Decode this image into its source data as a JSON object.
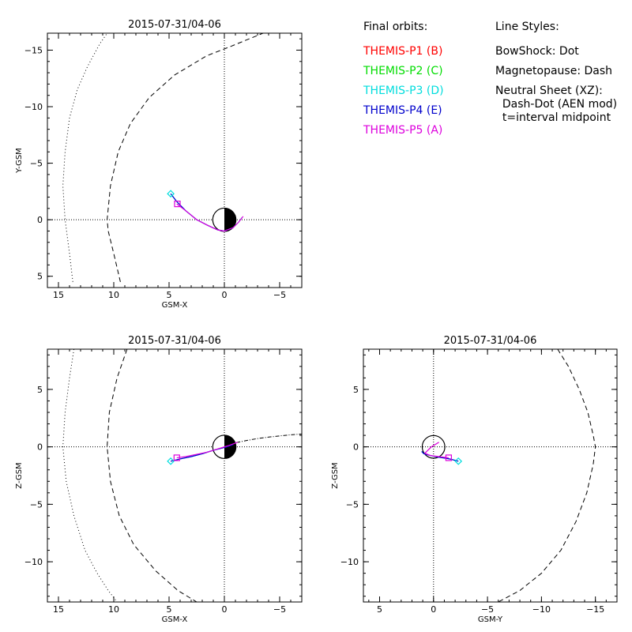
{
  "colors": {
    "P1": "#ff0000",
    "P2": "#00dd00",
    "P3": "#00dddd",
    "P4": "#0000cc",
    "P5": "#dd00dd",
    "axes": "#000000"
  },
  "legend": {
    "orbits_title": "Final orbits:",
    "probes": [
      {
        "label": "THEMIS-P1 (B)",
        "color_key": "P1"
      },
      {
        "label": "THEMIS-P2 (C)",
        "color_key": "P2"
      },
      {
        "label": "THEMIS-P3 (D)",
        "color_key": "P3"
      },
      {
        "label": "THEMIS-P4 (E)",
        "color_key": "P4"
      },
      {
        "label": "THEMIS-P5 (A)",
        "color_key": "P5"
      }
    ],
    "styles_title": "Line Styles:",
    "styles": [
      "BowShock: Dot",
      "Magnetopause: Dash",
      "Neutral Sheet (XZ):",
      "  Dash-Dot (AEN mod)",
      "  t=interval midpoint"
    ]
  },
  "chart_data": [
    {
      "type": "line",
      "title": "2015-07-31/04-06",
      "xlabel": "GSM-X",
      "ylabel": "Y-GSM",
      "xlim": [
        16,
        -7
      ],
      "ylim": [
        6,
        -16.5
      ],
      "xticks": [
        15,
        10,
        5,
        0,
        -5
      ],
      "yticks": [
        5,
        0,
        -5,
        -10,
        -15
      ],
      "earth": true,
      "bowshock": {
        "x": [
          13.7,
          14.0,
          14.4,
          14.6,
          14.4,
          14.0,
          13.3,
          12.4,
          11.3,
          10.6,
          9.0
        ],
        "y": [
          5.5,
          3.0,
          0.0,
          -3.0,
          -6.0,
          -9.0,
          -11.5,
          -13.5,
          -15.5,
          -16.5,
          -19.0
        ]
      },
      "magnetopause": {
        "x": [
          9.4,
          10.0,
          10.5,
          10.6,
          10.3,
          9.6,
          8.5,
          6.8,
          4.5,
          1.6,
          -0.5,
          -3.5
        ],
        "y": [
          5.5,
          3.0,
          1.0,
          0.0,
          -3.0,
          -6.0,
          -8.5,
          -10.8,
          -12.8,
          -14.5,
          -15.3,
          -16.5
        ]
      },
      "orbits": [
        {
          "name": "THEMIS-P3",
          "color_key": "P3",
          "x": [
            4.85,
            4.3,
            3.5,
            2.5,
            1.5,
            0.6,
            0.0,
            -0.8,
            -1.3,
            -1.6
          ],
          "y": [
            -2.3,
            -1.6,
            -0.8,
            0.0,
            0.5,
            0.9,
            1.0,
            0.7,
            0.2,
            -0.2
          ]
        },
        {
          "name": "THEMIS-P4",
          "color_key": "P4",
          "x": [
            4.85,
            4.3,
            3.5,
            2.5,
            1.5,
            0.6,
            0.0,
            -0.8
          ],
          "y": [
            -2.3,
            -1.6,
            -0.8,
            0.0,
            0.5,
            0.9,
            1.0,
            0.7
          ]
        },
        {
          "name": "THEMIS-P5",
          "color_key": "P5",
          "x": [
            4.3,
            3.5,
            2.5,
            1.5,
            0.6,
            0.0,
            -0.8,
            -1.3,
            -1.7
          ],
          "y": [
            -1.4,
            -0.8,
            0.0,
            0.5,
            0.9,
            1.0,
            0.7,
            0.2,
            -0.3
          ]
        }
      ],
      "markers": [
        {
          "shape": "diamond",
          "color_key": "P3",
          "x": 4.85,
          "y": -2.3
        },
        {
          "shape": "square",
          "color_key": "P5",
          "x": 4.25,
          "y": -1.4
        }
      ]
    },
    {
      "type": "line",
      "title": "2015-07-31/04-06",
      "xlabel": "GSM-X",
      "ylabel": "Z-GSM",
      "xlim": [
        16,
        -7
      ],
      "ylim": [
        -13.5,
        8.5
      ],
      "xticks": [
        15,
        10,
        5,
        0,
        -5
      ],
      "yticks": [
        5,
        0,
        -5,
        -10
      ],
      "earth": true,
      "bowshock": {
        "x": [
          13.6,
          14.0,
          14.4,
          14.6,
          14.3,
          13.6,
          12.6,
          11.5,
          10.5,
          9.7
        ],
        "y": [
          8.5,
          6.0,
          3.0,
          0.0,
          -3.0,
          -6.0,
          -9.0,
          -11.0,
          -12.5,
          -13.5
        ]
      },
      "magnetopause": {
        "x": [
          8.8,
          9.7,
          10.4,
          10.6,
          10.3,
          9.5,
          8.2,
          6.2,
          4.2,
          2.5
        ],
        "y": [
          8.5,
          6.0,
          3.0,
          0.0,
          -3.0,
          -6.0,
          -8.5,
          -10.8,
          -12.5,
          -13.5
        ]
      },
      "neutral_sheet": {
        "x": [
          1.0,
          0.0,
          -1.0,
          -2.0,
          -3.0,
          -4.0,
          -5.0,
          -6.0,
          -7.0
        ],
        "y": [
          -0.1,
          0.1,
          0.35,
          0.55,
          0.72,
          0.85,
          0.95,
          1.05,
          1.12
        ]
      },
      "orbits": [
        {
          "name": "THEMIS-P3",
          "color_key": "P3",
          "x": [
            4.85,
            4.0,
            3.0,
            2.0,
            1.0,
            0.0,
            -0.8
          ],
          "y": [
            -1.25,
            -1.05,
            -0.85,
            -0.6,
            -0.3,
            -0.05,
            0.2
          ]
        },
        {
          "name": "THEMIS-P4",
          "color_key": "P4",
          "x": [
            4.85,
            4.0,
            3.0,
            2.0,
            1.0,
            0.0,
            -0.8
          ],
          "y": [
            -1.25,
            -1.05,
            -0.85,
            -0.6,
            -0.3,
            -0.05,
            0.2
          ]
        },
        {
          "name": "THEMIS-P5",
          "color_key": "P5",
          "x": [
            4.3,
            3.5,
            2.5,
            1.5,
            0.5,
            -0.5,
            -1.2
          ],
          "y": [
            -0.95,
            -0.85,
            -0.65,
            -0.45,
            -0.15,
            0.15,
            0.4
          ]
        }
      ],
      "markers": [
        {
          "shape": "diamond",
          "color_key": "P3",
          "x": 4.85,
          "y": -1.25
        },
        {
          "shape": "square",
          "color_key": "P5",
          "x": 4.3,
          "y": -0.95
        }
      ]
    },
    {
      "type": "line",
      "title": "2015-07-31/04-06",
      "xlabel": "GSM-Y",
      "ylabel": "Z-GSM",
      "xlim": [
        6.5,
        -17
      ],
      "ylim": [
        -13.5,
        8.5
      ],
      "xticks": [
        5,
        0,
        -5,
        -10,
        -15
      ],
      "yticks": [
        5,
        0,
        -5,
        -10
      ],
      "earth": false,
      "earth_outline": true,
      "magnetopause": {
        "x": [
          -11.5,
          -12.5,
          -13.5,
          -14.3,
          -14.8,
          -15.0,
          -14.8,
          -14.2,
          -13.2,
          -11.8,
          -10.0,
          -8.0,
          -6.0
        ],
        "y": [
          8.5,
          7.0,
          5.0,
          3.0,
          1.0,
          0.0,
          -1.5,
          -4.0,
          -6.5,
          -9.0,
          -11.0,
          -12.5,
          -13.5
        ]
      },
      "orbits": [
        {
          "name": "THEMIS-P3",
          "color_key": "P3",
          "x": [
            -2.3,
            -1.5,
            -0.5,
            0.3,
            0.9,
            1.1
          ],
          "y": [
            -1.25,
            -1.05,
            -0.9,
            -0.75,
            -0.6,
            -0.4
          ]
        },
        {
          "name": "THEMIS-P4",
          "color_key": "P4",
          "x": [
            -2.3,
            -1.5,
            -0.5,
            0.3,
            0.9,
            1.1
          ],
          "y": [
            -1.25,
            -1.05,
            -0.9,
            -0.75,
            -0.6,
            -0.4
          ]
        },
        {
          "name": "THEMIS-P5",
          "color_key": "P5",
          "x": [
            -1.4,
            -0.5,
            0.3,
            0.8,
            0.2,
            -0.5
          ],
          "y": [
            -0.95,
            -0.85,
            -0.75,
            -0.55,
            0.0,
            0.4
          ]
        }
      ],
      "markers": [
        {
          "shape": "diamond",
          "color_key": "P3",
          "x": -2.3,
          "y": -1.25
        },
        {
          "shape": "square",
          "color_key": "P5",
          "x": -1.4,
          "y": -0.95
        }
      ]
    }
  ]
}
